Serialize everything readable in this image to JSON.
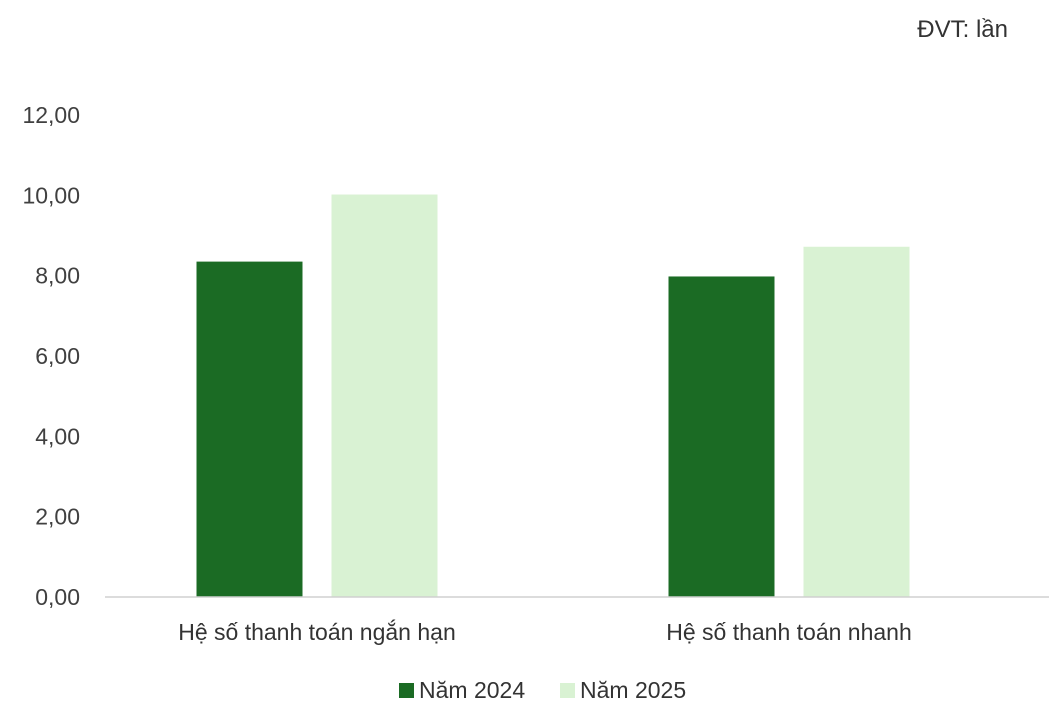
{
  "unit_label": "ĐVT: lần",
  "chart_data": {
    "type": "bar",
    "title": "",
    "xlabel": "",
    "ylabel": "",
    "categories": [
      "Hệ số thanh toán ngắn hạn",
      "Hệ số thanh toán nhanh"
    ],
    "series": [
      {
        "name": "Năm 2024",
        "color": "#1b6b24",
        "values": [
          8.35,
          7.98
        ]
      },
      {
        "name": "Năm 2025",
        "color": "#d9f2d3",
        "values": [
          10.02,
          8.72
        ]
      }
    ],
    "ylim": [
      0,
      12
    ],
    "yticks": [
      "0,00",
      "2,00",
      "4,00",
      "6,00",
      "8,00",
      "10,00",
      "12,00"
    ],
    "grid": false,
    "legend": "bottom"
  }
}
